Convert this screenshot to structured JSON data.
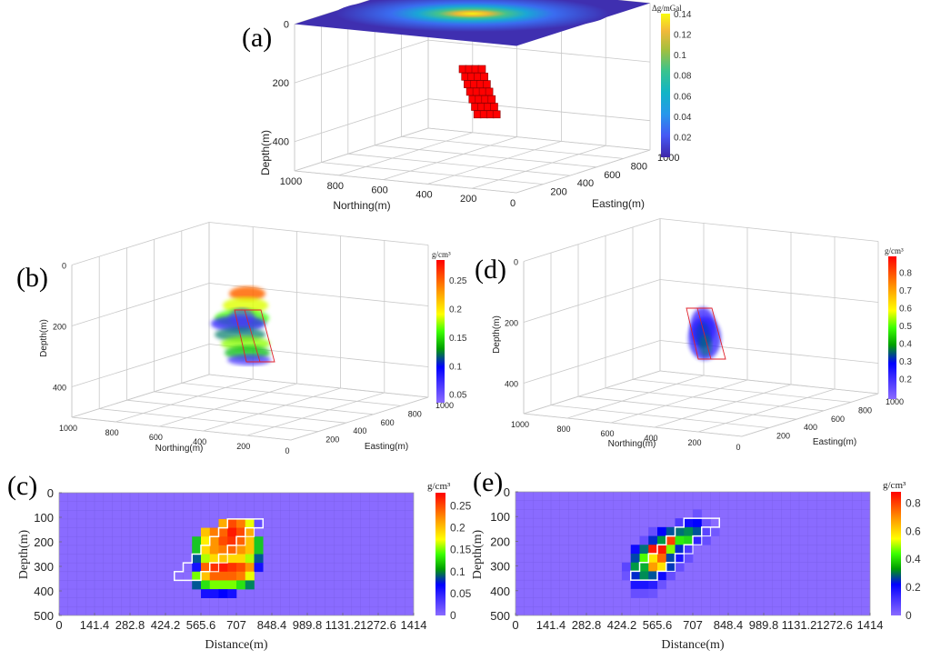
{
  "figure": {
    "panels": {
      "a": {
        "label": "(a)",
        "colorbar_title": "Δg/mGal"
      },
      "b": {
        "label": "(b)",
        "colorbar_title": "g/cm³"
      },
      "c": {
        "label": "(c)",
        "colorbar_title": "g/cm³"
      },
      "d": {
        "label": "(d)",
        "colorbar_title": "g/cm³"
      },
      "e": {
        "label": "(e)",
        "colorbar_title": "g/cm³"
      }
    }
  },
  "chart_data": [
    {
      "id": "a",
      "type": "surface3d",
      "title": "",
      "xlabel": "Easting(m)",
      "ylabel": "Northing(m)",
      "zlabel": "Depth(m)",
      "x_ticks": [
        "0",
        "200",
        "400",
        "600",
        "800",
        "1000"
      ],
      "y_ticks": [
        "1000",
        "800",
        "600",
        "400",
        "200",
        "0"
      ],
      "z_ticks": [
        "0",
        "200",
        "400"
      ],
      "xlim": [
        0,
        1000
      ],
      "ylim": [
        0,
        1000
      ],
      "zlim": [
        0,
        500
      ],
      "surface": {
        "name": "gravity anomaly",
        "peak_value": 0.14,
        "peak_easting": 500,
        "peak_northing": 500,
        "depth": 0
      },
      "prism": {
        "name": "model body",
        "top_depth": 100,
        "bottom_depth": 300,
        "color": "#ff0000",
        "dip_direction": "easting",
        "layers": 7
      },
      "colorbar": {
        "title": "Δg/mGal",
        "ticks": [
          "0.02",
          "0.04",
          "0.06",
          "0.08",
          "0.1",
          "0.12",
          "0.14"
        ],
        "range": [
          0,
          0.14
        ],
        "colormap": "parula"
      }
    },
    {
      "id": "b",
      "type": "volume3d",
      "xlabel": "Easting(m)",
      "ylabel": "Northing(m)",
      "zlabel": "Depth(m)",
      "x_ticks": [
        "0",
        "200",
        "400",
        "600",
        "800",
        "1000"
      ],
      "y_ticks": [
        "1000",
        "800",
        "600",
        "400",
        "200",
        "0"
      ],
      "z_ticks": [
        "0",
        "200",
        "400"
      ],
      "xlim": [
        0,
        1000
      ],
      "ylim": [
        0,
        1000
      ],
      "zlim": [
        0,
        500
      ],
      "body": {
        "depth_range": [
          100,
          320
        ],
        "max_value": 0.27,
        "shape": "rounded blob, horizontally layered"
      },
      "colorbar": {
        "title": "g/cm³",
        "ticks": [
          "0.05",
          "0.1",
          "0.15",
          "0.2",
          "0.25"
        ],
        "range": [
          0.04,
          0.28
        ],
        "colormap": "jet-like"
      }
    },
    {
      "id": "d",
      "type": "volume3d",
      "xlabel": "Easting(m)",
      "ylabel": "Northing(m)",
      "zlabel": "Depth(m)",
      "x_ticks": [
        "0",
        "200",
        "400",
        "600",
        "800",
        "1000"
      ],
      "y_ticks": [
        "1000",
        "800",
        "600",
        "400",
        "200",
        "0"
      ],
      "z_ticks": [
        "0",
        "200",
        "400"
      ],
      "xlim": [
        0,
        1000
      ],
      "ylim": [
        0,
        1000
      ],
      "zlim": [
        0,
        500
      ],
      "body": {
        "depth_range": [
          100,
          320
        ],
        "max_value": 0.88,
        "shape": "compact dipping ellipsoid"
      },
      "colorbar": {
        "title": "g/cm³",
        "ticks": [
          "0.2",
          "0.3",
          "0.4",
          "0.5",
          "0.6",
          "0.7",
          "0.8"
        ],
        "range": [
          0.1,
          0.88
        ],
        "colormap": "jet-like"
      }
    },
    {
      "id": "c",
      "type": "heatmap",
      "xlabel": "Distance(m)",
      "ylabel": "Depth(m)",
      "x_ticks": [
        "0",
        "141.4",
        "282.8",
        "424.2",
        "565.6",
        "707",
        "848.4",
        "989.8",
        "1131.2",
        "1272.6",
        "1414"
      ],
      "y_ticks": [
        "0",
        "100",
        "200",
        "300",
        "400",
        "500"
      ],
      "xlim": [
        0,
        1414
      ],
      "ylim": [
        500,
        0
      ],
      "grid": {
        "cols": 40,
        "rows": 14,
        "background_value": 0
      },
      "cells": [
        {
          "r": 3,
          "c": 18,
          "v": 0.21
        },
        {
          "r": 3,
          "c": 19,
          "v": 0.25
        },
        {
          "r": 3,
          "c": 20,
          "v": 0.23
        },
        {
          "r": 3,
          "c": 21,
          "v": 0.17
        },
        {
          "r": 3,
          "c": 22,
          "v": 0.02
        },
        {
          "r": 4,
          "c": 16,
          "v": 0.2
        },
        {
          "r": 4,
          "c": 17,
          "v": 0.23
        },
        {
          "r": 4,
          "c": 18,
          "v": 0.24
        },
        {
          "r": 4,
          "c": 19,
          "v": 0.27
        },
        {
          "r": 4,
          "c": 20,
          "v": 0.25
        },
        {
          "r": 4,
          "c": 21,
          "v": 0.21
        },
        {
          "r": 5,
          "c": 15,
          "v": 0.12
        },
        {
          "r": 5,
          "c": 16,
          "v": 0.18
        },
        {
          "r": 5,
          "c": 17,
          "v": 0.22
        },
        {
          "r": 5,
          "c": 18,
          "v": 0.25
        },
        {
          "r": 5,
          "c": 19,
          "v": 0.26
        },
        {
          "r": 5,
          "c": 20,
          "v": 0.24
        },
        {
          "r": 5,
          "c": 21,
          "v": 0.2
        },
        {
          "r": 5,
          "c": 22,
          "v": 0.12
        },
        {
          "r": 6,
          "c": 15,
          "v": 0.12
        },
        {
          "r": 6,
          "c": 16,
          "v": 0.19
        },
        {
          "r": 6,
          "c": 17,
          "v": 0.22
        },
        {
          "r": 6,
          "c": 18,
          "v": 0.23
        },
        {
          "r": 6,
          "c": 19,
          "v": 0.24
        },
        {
          "r": 6,
          "c": 20,
          "v": 0.22
        },
        {
          "r": 6,
          "c": 21,
          "v": 0.2
        },
        {
          "r": 6,
          "c": 22,
          "v": 0.12
        },
        {
          "r": 7,
          "c": 15,
          "v": 0.09
        },
        {
          "r": 7,
          "c": 16,
          "v": 0.16
        },
        {
          "r": 7,
          "c": 17,
          "v": 0.19
        },
        {
          "r": 7,
          "c": 18,
          "v": 0.2
        },
        {
          "r": 7,
          "c": 19,
          "v": 0.19
        },
        {
          "r": 7,
          "c": 20,
          "v": 0.19
        },
        {
          "r": 7,
          "c": 21,
          "v": 0.16
        },
        {
          "r": 7,
          "c": 22,
          "v": 0.09
        },
        {
          "r": 8,
          "c": 15,
          "v": 0.06
        },
        {
          "r": 8,
          "c": 16,
          "v": 0.24
        },
        {
          "r": 8,
          "c": 17,
          "v": 0.26
        },
        {
          "r": 8,
          "c": 18,
          "v": 0.27
        },
        {
          "r": 8,
          "c": 19,
          "v": 0.26
        },
        {
          "r": 8,
          "c": 20,
          "v": 0.25
        },
        {
          "r": 8,
          "c": 21,
          "v": 0.22
        },
        {
          "r": 8,
          "c": 22,
          "v": 0.06
        },
        {
          "r": 9,
          "c": 15,
          "v": 0.15
        },
        {
          "r": 9,
          "c": 16,
          "v": 0.2
        },
        {
          "r": 9,
          "c": 17,
          "v": 0.24
        },
        {
          "r": 9,
          "c": 18,
          "v": 0.24
        },
        {
          "r": 9,
          "c": 19,
          "v": 0.24
        },
        {
          "r": 9,
          "c": 20,
          "v": 0.23
        },
        {
          "r": 9,
          "c": 21,
          "v": 0.17
        },
        {
          "r": 10,
          "c": 15,
          "v": 0.09
        },
        {
          "r": 10,
          "c": 16,
          "v": 0.13
        },
        {
          "r": 10,
          "c": 17,
          "v": 0.15
        },
        {
          "r": 10,
          "c": 18,
          "v": 0.15
        },
        {
          "r": 10,
          "c": 19,
          "v": 0.15
        },
        {
          "r": 10,
          "c": 20,
          "v": 0.13
        },
        {
          "r": 10,
          "c": 21,
          "v": 0.1
        },
        {
          "r": 11,
          "c": 16,
          "v": 0.06
        },
        {
          "r": 11,
          "c": 17,
          "v": 0.06
        },
        {
          "r": 11,
          "c": 18,
          "v": 0.07
        },
        {
          "r": 11,
          "c": 19,
          "v": 0.06
        }
      ],
      "outline": {
        "name": "true model boundary",
        "color": "#ffffff"
      },
      "colorbar": {
        "title": "g/cm³",
        "ticks": [
          "0",
          "0.05",
          "0.1",
          "0.15",
          "0.2",
          "0.25"
        ],
        "range": [
          0,
          0.28
        ],
        "colormap": "jet-like"
      }
    },
    {
      "id": "e",
      "type": "heatmap",
      "xlabel": "Distance(m)",
      "ylabel": "Depth(m)",
      "x_ticks": [
        "0",
        "141.4",
        "282.8",
        "424.2",
        "565.6",
        "707",
        "848.4",
        "989.8",
        "1131.2",
        "1272.6",
        "1414"
      ],
      "y_ticks": [
        "0",
        "100",
        "200",
        "300",
        "400",
        "500"
      ],
      "xlim": [
        0,
        1414
      ],
      "ylim": [
        500,
        0
      ],
      "grid": {
        "cols": 40,
        "rows": 14,
        "background_value": 0
      },
      "cells": [
        {
          "r": 2,
          "c": 20,
          "v": 0.05
        },
        {
          "r": 3,
          "c": 18,
          "v": 0.1
        },
        {
          "r": 3,
          "c": 19,
          "v": 0.2
        },
        {
          "r": 3,
          "c": 20,
          "v": 0.22
        },
        {
          "r": 3,
          "c": 21,
          "v": 0.05
        },
        {
          "r": 4,
          "c": 15,
          "v": 0.06
        },
        {
          "r": 4,
          "c": 16,
          "v": 0.22
        },
        {
          "r": 4,
          "c": 17,
          "v": 0.28
        },
        {
          "r": 4,
          "c": 18,
          "v": 0.3
        },
        {
          "r": 4,
          "c": 19,
          "v": 0.32
        },
        {
          "r": 4,
          "c": 20,
          "v": 0.28
        },
        {
          "r": 4,
          "c": 21,
          "v": 0.08
        },
        {
          "r": 4,
          "c": 22,
          "v": 0.04
        },
        {
          "r": 5,
          "c": 14,
          "v": 0.06
        },
        {
          "r": 5,
          "c": 15,
          "v": 0.25
        },
        {
          "r": 5,
          "c": 16,
          "v": 0.33
        },
        {
          "r": 5,
          "c": 17,
          "v": 0.8
        },
        {
          "r": 5,
          "c": 18,
          "v": 0.42
        },
        {
          "r": 5,
          "c": 19,
          "v": 0.4
        },
        {
          "r": 5,
          "c": 20,
          "v": 0.15
        },
        {
          "r": 5,
          "c": 21,
          "v": 0.06
        },
        {
          "r": 6,
          "c": 13,
          "v": 0.2
        },
        {
          "r": 6,
          "c": 14,
          "v": 0.3
        },
        {
          "r": 6,
          "c": 15,
          "v": 0.85
        },
        {
          "r": 6,
          "c": 16,
          "v": 0.85
        },
        {
          "r": 6,
          "c": 17,
          "v": 0.48
        },
        {
          "r": 6,
          "c": 18,
          "v": 0.25
        },
        {
          "r": 6,
          "c": 19,
          "v": 0.1
        },
        {
          "r": 7,
          "c": 13,
          "v": 0.27
        },
        {
          "r": 7,
          "c": 14,
          "v": 0.45
        },
        {
          "r": 7,
          "c": 15,
          "v": 0.58
        },
        {
          "r": 7,
          "c": 16,
          "v": 0.75
        },
        {
          "r": 7,
          "c": 17,
          "v": 0.27
        },
        {
          "r": 7,
          "c": 18,
          "v": 0.18
        },
        {
          "r": 7,
          "c": 19,
          "v": 0.06
        },
        {
          "r": 8,
          "c": 12,
          "v": 0.08
        },
        {
          "r": 8,
          "c": 13,
          "v": 0.33
        },
        {
          "r": 8,
          "c": 14,
          "v": 0.35
        },
        {
          "r": 8,
          "c": 15,
          "v": 0.68
        },
        {
          "r": 8,
          "c": 16,
          "v": 0.58
        },
        {
          "r": 8,
          "c": 17,
          "v": 0.26
        },
        {
          "r": 8,
          "c": 18,
          "v": 0.06
        },
        {
          "r": 9,
          "c": 12,
          "v": 0.05
        },
        {
          "r": 9,
          "c": 13,
          "v": 0.25
        },
        {
          "r": 9,
          "c": 14,
          "v": 0.32
        },
        {
          "r": 9,
          "c": 15,
          "v": 0.28
        },
        {
          "r": 9,
          "c": 16,
          "v": 0.2
        },
        {
          "r": 9,
          "c": 17,
          "v": 0.06
        },
        {
          "r": 10,
          "c": 13,
          "v": 0.18
        },
        {
          "r": 10,
          "c": 14,
          "v": 0.18
        },
        {
          "r": 10,
          "c": 15,
          "v": 0.16
        },
        {
          "r": 10,
          "c": 16,
          "v": 0.05
        },
        {
          "r": 11,
          "c": 13,
          "v": 0.06
        },
        {
          "r": 11,
          "c": 14,
          "v": 0.06
        },
        {
          "r": 11,
          "c": 15,
          "v": 0.05
        }
      ],
      "outline": {
        "name": "true model boundary",
        "color": "#ffffff"
      },
      "colorbar": {
        "title": "g/cm³",
        "ticks": [
          "0",
          "0.2",
          "0.4",
          "0.6",
          "0.8"
        ],
        "range": [
          0,
          0.88
        ],
        "colormap": "jet-like"
      }
    }
  ]
}
